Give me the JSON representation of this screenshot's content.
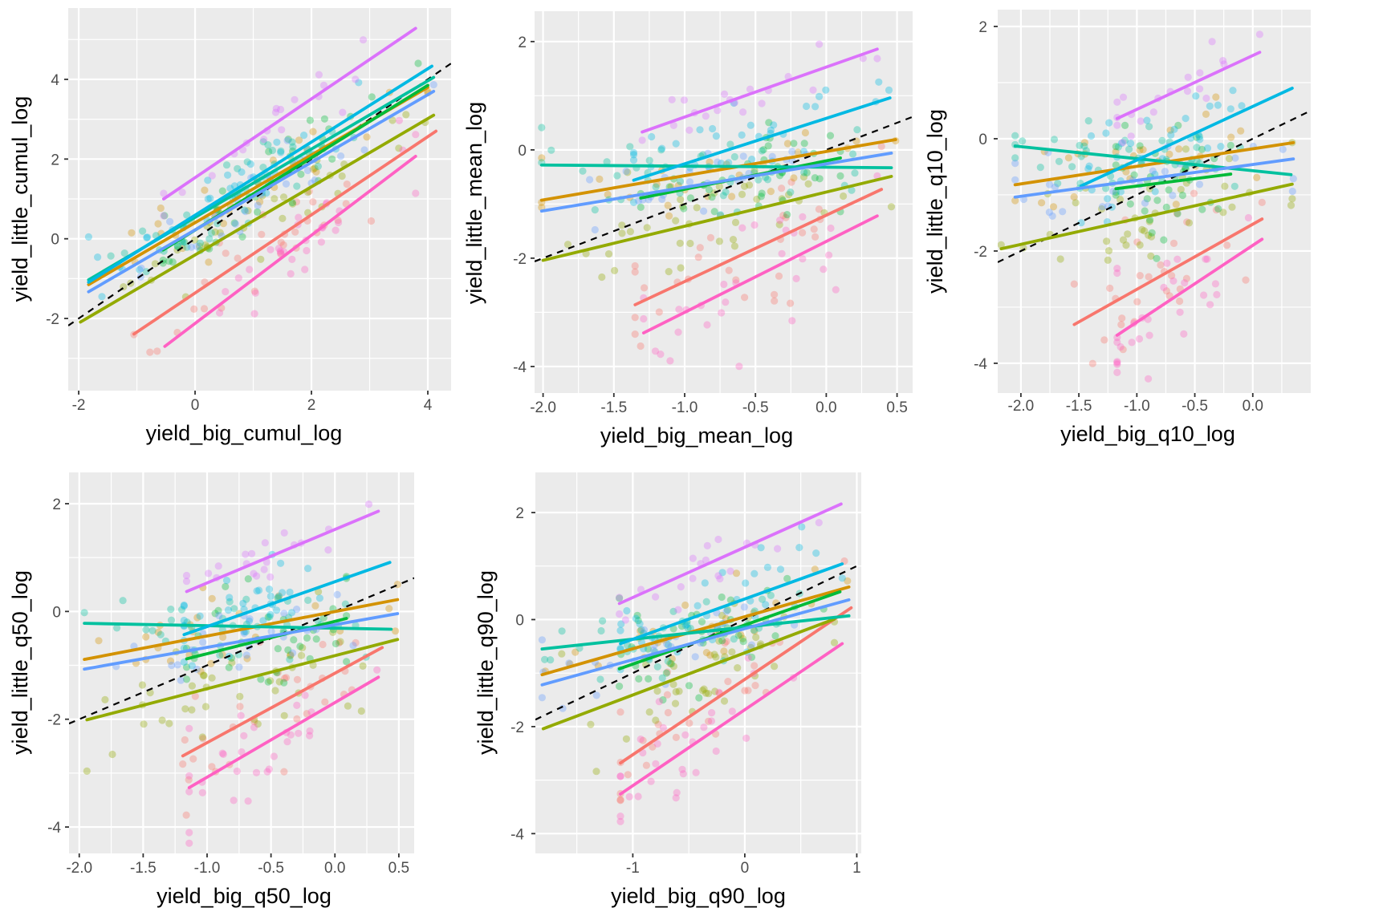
{
  "theme": {
    "page_bg": "#FFFFFF",
    "panel_bg": "#EBEBEB",
    "grid_major_color": "#FFFFFF",
    "grid_minor_color": "#FFFFFF",
    "tick_color": "#333333",
    "tick_label_color": "#4D4D4D",
    "axis_title_color": "#000000",
    "identity_line_color": "#000000",
    "point_opacity": 0.35,
    "series_colors": [
      "#F8766D",
      "#D39200",
      "#93AA00",
      "#00BA38",
      "#00C19F",
      "#00B9E3",
      "#619CFF",
      "#DB72FB",
      "#FF61C3"
    ]
  },
  "chart_data": [
    {
      "type": "scatter",
      "xlabel": "yield_big_cumul_log",
      "ylabel": "yield_little_cumul_log",
      "xlim": [
        -2.18,
        4.4
      ],
      "ylim": [
        -3.81,
        5.79
      ],
      "xticks": [
        -2,
        0,
        2,
        4
      ],
      "xtick_labels": [
        "-2",
        "0",
        "2",
        "4"
      ],
      "yticks": [
        -2,
        0,
        2,
        4
      ],
      "ytick_labels": [
        "-2",
        "0",
        "2",
        "4"
      ],
      "abline": {
        "slope": 1,
        "intercept": 0,
        "style": "dashed"
      },
      "series": [
        {
          "name": "salmon",
          "color": "#F8766D",
          "line": [
            -1.05,
            -2.39,
            4.14,
            2.7
          ],
          "scatter": {
            "n": 30,
            "cx": 1.0,
            "sx": 1.1,
            "sy": 0.5
          }
        },
        {
          "name": "ochre",
          "color": "#D39200",
          "line": [
            -1.83,
            -1.15,
            4.0,
            3.8
          ],
          "scatter": {
            "n": 28,
            "cx": 1.0,
            "sx": 1.3,
            "sy": 0.45
          }
        },
        {
          "name": "olive",
          "color": "#93AA00",
          "line": [
            -1.97,
            -2.09,
            4.1,
            3.1
          ],
          "scatter": {
            "n": 40,
            "cx": 1.2,
            "sx": 1.2,
            "sy": 0.5
          }
        },
        {
          "name": "green",
          "color": "#00BA38",
          "line": [
            -0.55,
            -0.28,
            4.0,
            3.85
          ],
          "scatter": {
            "n": 38,
            "cx": 1.3,
            "sx": 1.1,
            "sy": 0.5
          }
        },
        {
          "name": "teal",
          "color": "#00C19F",
          "line": [
            -1.83,
            -1.03,
            4.1,
            4.05
          ],
          "scatter": {
            "n": 40,
            "cx": 0.9,
            "sx": 1.3,
            "sy": 0.5
          }
        },
        {
          "name": "cyan",
          "color": "#00B9E3",
          "line": [
            -1.83,
            -1.09,
            4.07,
            4.33
          ],
          "scatter": {
            "n": 36,
            "cx": 1.0,
            "sx": 1.3,
            "sy": 0.45
          }
        },
        {
          "name": "blue",
          "color": "#619CFF",
          "line": [
            -1.83,
            -1.33,
            4.1,
            3.7
          ],
          "scatter": {
            "n": 26,
            "cx": 1.0,
            "sx": 1.3,
            "sy": 0.45
          }
        },
        {
          "name": "orchid",
          "color": "#DB72FB",
          "line": [
            -0.54,
            1.0,
            3.79,
            5.28
          ],
          "scatter": {
            "n": 20,
            "cx": 1.5,
            "sx": 1.1,
            "sy": 0.35
          }
        },
        {
          "name": "pink",
          "color": "#FF61C3",
          "line": [
            -0.52,
            -2.7,
            3.79,
            2.07
          ],
          "scatter": {
            "n": 30,
            "cx": 1.4,
            "sx": 1.1,
            "sy": 0.55
          }
        }
      ]
    },
    {
      "type": "scatter",
      "xlabel": "yield_big_mean_log",
      "ylabel": "yield_little_mean_log",
      "xlim": [
        -2.06,
        0.61
      ],
      "ylim": [
        -4.49,
        2.56
      ],
      "xticks": [
        -2.0,
        -1.5,
        -1.0,
        -0.5,
        0.0,
        0.5
      ],
      "xtick_labels": [
        "-2.0",
        "-1.5",
        "-1.0",
        "-0.5",
        "0.0",
        "0.5"
      ],
      "yticks": [
        -4,
        -2,
        0,
        2
      ],
      "ytick_labels": [
        "-4",
        "-2",
        "0",
        "2"
      ],
      "abline": {
        "slope": 1,
        "intercept": 0,
        "style": "dashed"
      },
      "series": [
        {
          "name": "salmon",
          "color": "#F8766D",
          "line": [
            -1.35,
            -2.86,
            0.39,
            -0.73
          ],
          "scatter": {
            "n": 30,
            "cx": -0.6,
            "sx": 0.45,
            "sy": 0.55
          }
        },
        {
          "name": "ochre",
          "color": "#D39200",
          "line": [
            -2.01,
            -0.93,
            0.49,
            0.19
          ],
          "scatter": {
            "n": 28,
            "cx": -0.75,
            "sx": 0.6,
            "sy": 0.4
          }
        },
        {
          "name": "olive",
          "color": "#93AA00",
          "line": [
            -2.0,
            -2.04,
            0.46,
            -0.49
          ],
          "scatter": {
            "n": 40,
            "cx": -0.7,
            "sx": 0.6,
            "sy": 0.5
          }
        },
        {
          "name": "green",
          "color": "#00BA38",
          "line": [
            -1.31,
            -0.89,
            0.1,
            -0.15
          ],
          "scatter": {
            "n": 38,
            "cx": -0.55,
            "sx": 0.4,
            "sy": 0.5
          }
        },
        {
          "name": "teal",
          "color": "#00C19F",
          "line": [
            -2.01,
            -0.28,
            0.46,
            -0.33
          ],
          "scatter": {
            "n": 40,
            "cx": -0.8,
            "sx": 0.6,
            "sy": 0.35
          }
        },
        {
          "name": "cyan",
          "color": "#00B9E3",
          "line": [
            -1.36,
            -0.56,
            0.45,
            0.96
          ],
          "scatter": {
            "n": 36,
            "cx": -0.6,
            "sx": 0.45,
            "sy": 0.4
          }
        },
        {
          "name": "blue",
          "color": "#619CFF",
          "line": [
            -2.01,
            -1.13,
            0.46,
            -0.06
          ],
          "scatter": {
            "n": 26,
            "cx": -0.7,
            "sx": 0.6,
            "sy": 0.4
          }
        },
        {
          "name": "orchid",
          "color": "#DB72FB",
          "line": [
            -1.3,
            0.33,
            0.36,
            1.86
          ],
          "scatter": {
            "n": 20,
            "cx": -0.55,
            "sx": 0.45,
            "sy": 0.3
          }
        },
        {
          "name": "pink",
          "color": "#FF61C3",
          "line": [
            -1.29,
            -3.38,
            0.36,
            -1.22
          ],
          "scatter": {
            "n": 30,
            "cx": -0.55,
            "sx": 0.5,
            "sy": 0.6
          }
        }
      ]
    },
    {
      "type": "scatter",
      "xlabel": "yield_big_q10_log",
      "ylabel": "yield_little_q10_log",
      "xlim": [
        -2.2,
        0.5
      ],
      "ylim": [
        -4.53,
        2.3
      ],
      "xticks": [
        -2.0,
        -1.5,
        -1.0,
        -0.5,
        0.0
      ],
      "xtick_labels": [
        "-2.0",
        "-1.5",
        "-1.0",
        "-0.5",
        "0.0"
      ],
      "yticks": [
        -4,
        -2,
        0,
        2
      ],
      "ytick_labels": [
        "-4",
        "-2",
        "0",
        "2"
      ],
      "abline": {
        "slope": 1,
        "intercept": 0,
        "style": "dashed"
      },
      "series": [
        {
          "name": "salmon",
          "color": "#F8766D",
          "line": [
            -1.54,
            -3.31,
            0.08,
            -1.43
          ],
          "scatter": {
            "n": 30,
            "cx": -0.8,
            "sx": 0.4,
            "sy": 0.5
          }
        },
        {
          "name": "ochre",
          "color": "#D39200",
          "line": [
            -2.05,
            -0.82,
            0.35,
            -0.07
          ],
          "scatter": {
            "n": 28,
            "cx": -0.95,
            "sx": 0.6,
            "sy": 0.4
          }
        },
        {
          "name": "olive",
          "color": "#93AA00",
          "line": [
            -2.17,
            -1.96,
            0.34,
            -0.81
          ],
          "scatter": {
            "n": 40,
            "cx": -0.9,
            "sx": 0.55,
            "sy": 0.5
          }
        },
        {
          "name": "green",
          "color": "#00BA38",
          "line": [
            -1.18,
            -0.89,
            -0.19,
            -0.63
          ],
          "scatter": {
            "n": 38,
            "cx": -0.75,
            "sx": 0.35,
            "sy": 0.5
          }
        },
        {
          "name": "teal",
          "color": "#00C19F",
          "line": [
            -2.05,
            -0.13,
            0.33,
            -0.64
          ],
          "scatter": {
            "n": 40,
            "cx": -1.0,
            "sx": 0.6,
            "sy": 0.35
          }
        },
        {
          "name": "cyan",
          "color": "#00B9E3",
          "line": [
            -1.48,
            -0.84,
            0.34,
            0.9
          ],
          "scatter": {
            "n": 36,
            "cx": -0.75,
            "sx": 0.4,
            "sy": 0.45
          }
        },
        {
          "name": "blue",
          "color": "#619CFF",
          "line": [
            -2.05,
            -1.04,
            0.35,
            -0.36
          ],
          "scatter": {
            "n": 26,
            "cx": -0.9,
            "sx": 0.6,
            "sy": 0.4
          }
        },
        {
          "name": "orchid",
          "color": "#DB72FB",
          "line": [
            -1.17,
            0.36,
            0.06,
            1.54
          ],
          "scatter": {
            "n": 20,
            "cx": -0.7,
            "sx": 0.4,
            "sy": 0.3
          }
        },
        {
          "name": "pink",
          "color": "#FF61C3",
          "line": [
            -1.17,
            -3.5,
            0.08,
            -1.79
          ],
          "scatter": {
            "n": 30,
            "cx": -0.75,
            "sx": 0.45,
            "sy": 0.55
          }
        }
      ]
    },
    {
      "type": "scatter",
      "xlabel": "yield_big_q50_log",
      "ylabel": "yield_little_q50_log",
      "xlim": [
        -2.08,
        0.62
      ],
      "ylim": [
        -4.49,
        2.58
      ],
      "xticks": [
        -2.0,
        -1.5,
        -1.0,
        -0.5,
        0.0,
        0.5
      ],
      "xtick_labels": [
        "-2.0",
        "-1.5",
        "-1.0",
        "-0.5",
        "0.0",
        "0.5"
      ],
      "yticks": [
        -4,
        -2,
        0,
        2
      ],
      "ytick_labels": [
        "-4",
        "-2",
        "0",
        "2"
      ],
      "abline": {
        "slope": 1,
        "intercept": 0,
        "style": "dashed"
      },
      "series": [
        {
          "name": "salmon",
          "color": "#F8766D",
          "line": [
            -1.19,
            -2.68,
            0.37,
            -0.67
          ],
          "scatter": {
            "n": 30,
            "cx": -0.6,
            "sx": 0.45,
            "sy": 0.55
          }
        },
        {
          "name": "ochre",
          "color": "#D39200",
          "line": [
            -1.96,
            -0.89,
            0.49,
            0.22
          ],
          "scatter": {
            "n": 28,
            "cx": -0.75,
            "sx": 0.6,
            "sy": 0.4
          }
        },
        {
          "name": "olive",
          "color": "#93AA00",
          "line": [
            -1.94,
            -2.01,
            0.49,
            -0.52
          ],
          "scatter": {
            "n": 40,
            "cx": -0.7,
            "sx": 0.6,
            "sy": 0.5
          }
        },
        {
          "name": "green",
          "color": "#00BA38",
          "line": [
            -1.16,
            -0.88,
            0.09,
            -0.13
          ],
          "scatter": {
            "n": 38,
            "cx": -0.55,
            "sx": 0.4,
            "sy": 0.5
          }
        },
        {
          "name": "teal",
          "color": "#00C19F",
          "line": [
            -1.96,
            -0.22,
            0.44,
            -0.33
          ],
          "scatter": {
            "n": 40,
            "cx": -0.8,
            "sx": 0.6,
            "sy": 0.35
          }
        },
        {
          "name": "cyan",
          "color": "#00B9E3",
          "line": [
            -1.18,
            -0.43,
            0.43,
            0.91
          ],
          "scatter": {
            "n": 36,
            "cx": -0.6,
            "sx": 0.45,
            "sy": 0.4
          }
        },
        {
          "name": "blue",
          "color": "#619CFF",
          "line": [
            -1.96,
            -1.07,
            0.49,
            -0.04
          ],
          "scatter": {
            "n": 26,
            "cx": -0.7,
            "sx": 0.6,
            "sy": 0.4
          }
        },
        {
          "name": "orchid",
          "color": "#DB72FB",
          "line": [
            -1.16,
            0.37,
            0.34,
            1.86
          ],
          "scatter": {
            "n": 20,
            "cx": -0.55,
            "sx": 0.45,
            "sy": 0.3
          }
        },
        {
          "name": "pink",
          "color": "#FF61C3",
          "line": [
            -1.14,
            -3.27,
            0.34,
            -1.22
          ],
          "scatter": {
            "n": 30,
            "cx": -0.55,
            "sx": 0.5,
            "sy": 0.6
          }
        }
      ]
    },
    {
      "type": "scatter",
      "xlabel": "yield_big_q90_log",
      "ylabel": "yield_little_q90_log",
      "xlim": [
        -1.87,
        1.04
      ],
      "ylim": [
        -4.37,
        2.75
      ],
      "xticks": [
        -1,
        0,
        1
      ],
      "xtick_labels": [
        "-1",
        "0",
        "1"
      ],
      "yticks": [
        -4,
        -2,
        0,
        2
      ],
      "ytick_labels": [
        "-4",
        "-2",
        "0",
        "2"
      ],
      "abline": {
        "slope": 1,
        "intercept": 0,
        "style": "dashed"
      },
      "series": [
        {
          "name": "salmon",
          "color": "#F8766D",
          "line": [
            -1.11,
            -2.68,
            0.95,
            0.22
          ],
          "scatter": {
            "n": 30,
            "cx": -0.45,
            "sx": 0.55,
            "sy": 0.55
          }
        },
        {
          "name": "ochre",
          "color": "#D39200",
          "line": [
            -1.81,
            -1.03,
            0.93,
            0.61
          ],
          "scatter": {
            "n": 28,
            "cx": -0.65,
            "sx": 0.65,
            "sy": 0.4
          }
        },
        {
          "name": "olive",
          "color": "#93AA00",
          "line": [
            -1.8,
            -2.04,
            0.8,
            0.01
          ],
          "scatter": {
            "n": 40,
            "cx": -0.6,
            "sx": 0.65,
            "sy": 0.5
          }
        },
        {
          "name": "green",
          "color": "#00BA38",
          "line": [
            -1.12,
            -0.92,
            0.85,
            0.52
          ],
          "scatter": {
            "n": 38,
            "cx": -0.45,
            "sx": 0.45,
            "sy": 0.5
          }
        },
        {
          "name": "teal",
          "color": "#00C19F",
          "line": [
            -1.81,
            -0.55,
            0.93,
            0.07
          ],
          "scatter": {
            "n": 40,
            "cx": -0.7,
            "sx": 0.65,
            "sy": 0.35
          }
        },
        {
          "name": "cyan",
          "color": "#00B9E3",
          "line": [
            -1.11,
            -0.45,
            0.87,
            1.04
          ],
          "scatter": {
            "n": 36,
            "cx": -0.45,
            "sx": 0.5,
            "sy": 0.4
          }
        },
        {
          "name": "blue",
          "color": "#619CFF",
          "line": [
            -1.81,
            -1.22,
            0.93,
            0.37
          ],
          "scatter": {
            "n": 26,
            "cx": -0.6,
            "sx": 0.65,
            "sy": 0.4
          }
        },
        {
          "name": "orchid",
          "color": "#DB72FB",
          "line": [
            -1.12,
            0.3,
            0.86,
            2.16
          ],
          "scatter": {
            "n": 20,
            "cx": -0.4,
            "sx": 0.5,
            "sy": 0.3
          }
        },
        {
          "name": "pink",
          "color": "#FF61C3",
          "line": [
            -1.11,
            -3.26,
            0.87,
            -0.45
          ],
          "scatter": {
            "n": 30,
            "cx": -0.45,
            "sx": 0.55,
            "sy": 0.6
          }
        }
      ]
    }
  ]
}
